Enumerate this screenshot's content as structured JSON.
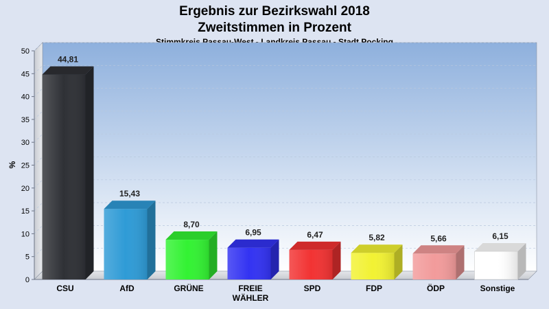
{
  "chart_data": {
    "type": "bar",
    "title": "Ergebnis zur Bezirkswahl 2018",
    "subtitle": "Zweitstimmen in Prozent",
    "caption": "Stimmkreis Passau-West - Landkreis Passau - Stadt Pocking",
    "xlabel": "",
    "ylabel": "%",
    "ylim": [
      0,
      50
    ],
    "yticks": [
      "0",
      "5",
      "10",
      "15",
      "20",
      "25",
      "30",
      "35",
      "40",
      "45",
      "50"
    ],
    "grid": true,
    "legend": "none",
    "categories": [
      {
        "key": "csu",
        "label": [
          "CSU"
        ],
        "value": 44.81,
        "value_label": "44,81",
        "color": "#2f3136"
      },
      {
        "key": "afd",
        "label": [
          "AfD"
        ],
        "value": 15.43,
        "value_label": "15,43",
        "color": "#2f9bd6"
      },
      {
        "key": "gruene",
        "label": [
          "GRÜNE"
        ],
        "value": 8.7,
        "value_label": "8,70",
        "color": "#33f233"
      },
      {
        "key": "freie-waehler",
        "label": [
          "FREIE",
          "WÄHLER"
        ],
        "value": 6.95,
        "value_label": "6,95",
        "color": "#3333f2"
      },
      {
        "key": "spd",
        "label": [
          "SPD"
        ],
        "value": 6.47,
        "value_label": "6,47",
        "color": "#f23333"
      },
      {
        "key": "fdp",
        "label": [
          "FDP"
        ],
        "value": 5.82,
        "value_label": "5,82",
        "color": "#f2f233"
      },
      {
        "key": "oedp",
        "label": [
          "ÖDP"
        ],
        "value": 5.66,
        "value_label": "5,66",
        "color": "#f29b9b"
      },
      {
        "key": "sonstige",
        "label": [
          "Sonstige"
        ],
        "value": 6.15,
        "value_label": "6,15",
        "color": "#ffffff"
      }
    ]
  }
}
